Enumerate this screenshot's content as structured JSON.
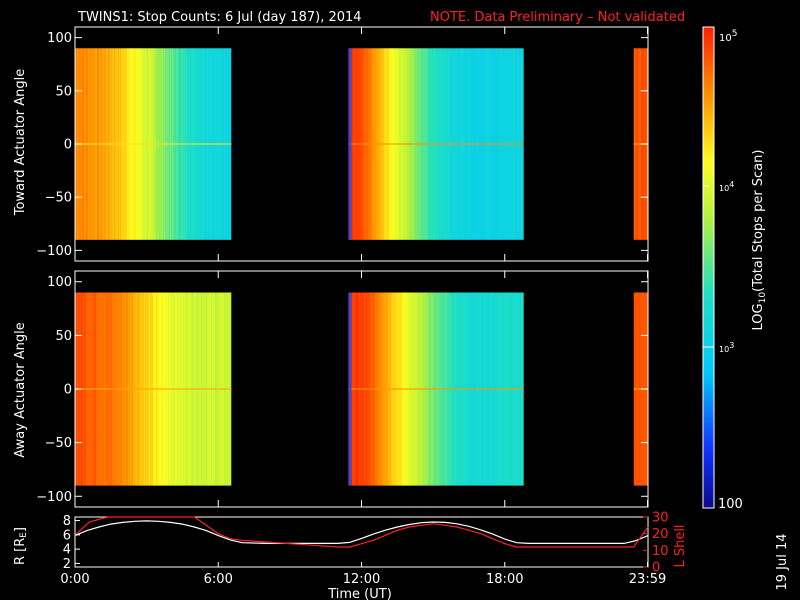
{
  "title": {
    "main": "TWINS1: Stop Counts:  6 Jul (day 187), 2014",
    "note": "NOTE. Data Preliminary – Not validated"
  },
  "stamp": "19 Jul 14",
  "colors": {
    "background": "#000000",
    "axis": "#ffffff",
    "note": "#ff2020",
    "r_curve": "#ffffff",
    "lshell_curve": "#ff2020"
  },
  "chart_data": [
    {
      "type": "heatmap",
      "name": "toward",
      "ylabel": "Toward Actuator Angle",
      "ylim": [
        -110,
        110
      ],
      "yticks": [
        100,
        50,
        0,
        -50,
        -100
      ],
      "xlim": [
        0,
        24
      ],
      "data_blocks": [
        {
          "start": 0.0,
          "end": 6.55,
          "profile": [
            0.88,
            0.86,
            0.84,
            0.8,
            0.74,
            0.66,
            0.58,
            0.5,
            0.44,
            0.4,
            0.38,
            0.37
          ]
        },
        {
          "start": 11.45,
          "end": 18.8,
          "profile": [
            0.98,
            0.94,
            0.86,
            0.78,
            0.7,
            0.62,
            0.54,
            0.47,
            0.42,
            0.38,
            0.36,
            0.35,
            0.35,
            0.36,
            0.37,
            0.38
          ]
        },
        {
          "start": 23.4,
          "end": 24.0,
          "profile": [
            0.93
          ]
        }
      ],
      "angle_range": [
        -90,
        90
      ]
    },
    {
      "type": "heatmap",
      "name": "away",
      "ylabel": "Away Actuator Angle",
      "ylim": [
        -110,
        110
      ],
      "yticks": [
        100,
        50,
        0,
        -50,
        -100
      ],
      "xlim": [
        0,
        24
      ],
      "data_blocks": [
        {
          "start": 0.0,
          "end": 6.55,
          "profile": [
            0.95,
            0.93,
            0.91,
            0.88,
            0.84,
            0.78,
            0.72,
            0.68,
            0.66,
            0.65,
            0.64,
            0.64
          ]
        },
        {
          "start": 11.45,
          "end": 18.8,
          "profile": [
            0.97,
            0.96,
            0.92,
            0.86,
            0.78,
            0.7,
            0.62,
            0.55,
            0.5,
            0.45,
            0.42,
            0.4,
            0.4,
            0.41,
            0.42,
            0.43
          ]
        },
        {
          "start": 23.4,
          "end": 24.0,
          "profile": [
            0.93
          ]
        }
      ],
      "angle_range": [
        -90,
        90
      ]
    },
    {
      "type": "line",
      "name": "ephemeris",
      "xlabel": "Time (UT)",
      "xticks": [
        {
          "value": 0,
          "label": "0:00"
        },
        {
          "value": 6,
          "label": "6:00"
        },
        {
          "value": 12,
          "label": "12:00"
        },
        {
          "value": 18,
          "label": "18:00"
        },
        {
          "value": 23.98,
          "label": "23:59"
        }
      ],
      "xlim": [
        0,
        24
      ],
      "left_axis": {
        "label": "R [R",
        "label_sub": "E",
        "label_end": "]",
        "ylim": [
          1.5,
          8.5
        ],
        "yticks": [
          2,
          4,
          6,
          8
        ]
      },
      "right_axis": {
        "label": "L Shell",
        "ylim": [
          0,
          30
        ],
        "yticks": [
          0,
          10,
          20,
          30
        ]
      },
      "series": [
        {
          "axis": "left",
          "x": [
            0,
            0.5,
            1,
            1.5,
            2,
            2.5,
            3,
            3.5,
            4,
            4.5,
            5,
            5.5,
            6,
            6.5,
            7,
            8,
            9,
            10,
            11,
            11.5,
            12,
            12.5,
            13,
            13.5,
            14,
            14.5,
            15,
            15.5,
            16,
            16.5,
            17,
            17.5,
            18,
            18.5,
            19,
            20,
            21,
            22,
            23,
            23.5,
            24
          ],
          "y": [
            5.9,
            6.6,
            7.1,
            7.5,
            7.75,
            7.9,
            7.95,
            7.9,
            7.75,
            7.5,
            7.1,
            6.6,
            5.9,
            5.3,
            4.9,
            4.8,
            4.8,
            4.8,
            4.8,
            4.95,
            5.5,
            6.1,
            6.65,
            7.1,
            7.45,
            7.7,
            7.8,
            7.75,
            7.55,
            7.2,
            6.7,
            6.1,
            5.4,
            4.9,
            4.8,
            4.8,
            4.8,
            4.8,
            4.8,
            5.2,
            5.9
          ]
        },
        {
          "axis": "right",
          "x": [
            0,
            0.6,
            1.1,
            1.4,
            2,
            3,
            4,
            4.5,
            5,
            5.5,
            6,
            6.5,
            7,
            8,
            9,
            10,
            11,
            11.5,
            12,
            12.5,
            13,
            13.5,
            14,
            14.5,
            15,
            15.5,
            16,
            16.5,
            17,
            17.5,
            18,
            18.5,
            19,
            20,
            21,
            22,
            23,
            23.4,
            23.7,
            24
          ],
          "y": [
            19,
            27,
            29,
            30,
            30,
            30,
            30,
            30,
            30,
            25,
            20,
            17,
            16,
            15,
            14,
            13,
            12,
            12,
            14,
            16,
            19,
            22,
            24,
            25,
            26,
            25,
            24,
            22,
            20,
            17,
            14,
            12,
            12,
            12,
            12,
            12,
            12,
            12,
            18,
            24
          ]
        }
      ]
    }
  ],
  "colorbar": {
    "label_pre": "LOG",
    "label_sub": "10",
    "label_post": "(Total Stops per Scan)",
    "min_label": "100",
    "mid_label_base": "10",
    "mid_label_exp": "3",
    "upper_label_base": "10",
    "upper_label_exp": "4",
    "max_label_base": "10",
    "max_label_exp": "5",
    "range_log": [
      2,
      5
    ]
  }
}
